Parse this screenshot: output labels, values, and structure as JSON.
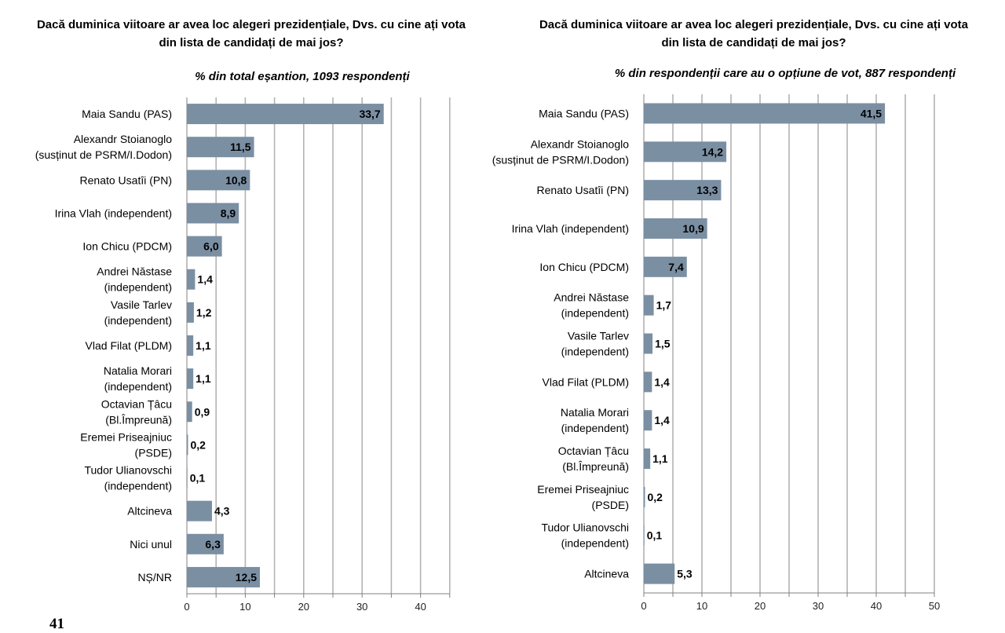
{
  "page_number": "41",
  "colors": {
    "bar": "#7b8fa3",
    "grid": "#b3b3b3",
    "axis": "#808080"
  },
  "chart_data": [
    {
      "type": "bar",
      "orientation": "horizontal",
      "title": "Dacă duminica viitoare ar avea loc alegeri prezidențiale, Dvs. cu cine ați vota din lista de candidați de mai jos?",
      "subtitle": "% din total eșantion, 1093 respondenți",
      "categories": [
        "Maia Sandu (PAS)",
        "Alexandr Stoianoglo\n(susținut de PSRM/I.Dodon)",
        "Renato Usatîi (PN)",
        "Irina Vlah (independent)",
        "Ion Chicu (PDCM)",
        "Andrei Năstase\n(independent)",
        "Vasile Tarlev\n(independent)",
        "Vlad Filat (PLDM)",
        "Natalia Morari\n(independent)",
        "Octavian Țâcu\n(Bl.Împreună)",
        "Eremei Priseajniuc\n(PSDE)",
        "Tudor Ulianovschi\n(independent)",
        "Altcineva",
        "Nici unul",
        "NȘ/NR"
      ],
      "values": [
        33.7,
        11.5,
        10.8,
        8.9,
        6.0,
        1.4,
        1.2,
        1.1,
        1.1,
        0.9,
        0.2,
        0.1,
        4.3,
        6.3,
        12.5
      ],
      "value_labels": [
        "33,7",
        "11,5",
        "10,8",
        "8,9",
        "6,0",
        "1,4",
        "1,2",
        "1,1",
        "1,1",
        "0,9",
        "0,2",
        "0,1",
        "4,3",
        "6,3",
        "12,5"
      ],
      "xlim": [
        0,
        45
      ],
      "xticks": [
        0,
        10,
        20,
        30,
        40
      ],
      "grid": true
    },
    {
      "type": "bar",
      "orientation": "horizontal",
      "title": "Dacă duminica viitoare ar avea loc alegeri prezidențiale, Dvs. cu cine ați vota din lista de candidați de mai jos?",
      "subtitle": "% din respondenții care au o opțiune de vot, 887 respondenți",
      "categories": [
        "Maia Sandu (PAS)",
        "Alexandr Stoianoglo\n(susținut de PSRM/I.Dodon)",
        "Renato Usatîi (PN)",
        "Irina Vlah (independent)",
        "Ion Chicu (PDCM)",
        "Andrei Năstase\n(independent)",
        "Vasile Tarlev\n(independent)",
        "Vlad Filat (PLDM)",
        "Natalia Morari\n(independent)",
        "Octavian Țâcu\n(Bl.Împreună)",
        "Eremei Priseajniuc\n(PSDE)",
        "Tudor Ulianovschi\n(independent)",
        "Altcineva"
      ],
      "values": [
        41.5,
        14.2,
        13.3,
        10.9,
        7.4,
        1.7,
        1.5,
        1.4,
        1.4,
        1.1,
        0.2,
        0.1,
        5.3
      ],
      "value_labels": [
        "41,5",
        "14,2",
        "13,3",
        "10,9",
        "7,4",
        "1,7",
        "1,5",
        "1,4",
        "1,4",
        "1,1",
        "0,2",
        "0,1",
        "5,3"
      ],
      "xlim": [
        0,
        50
      ],
      "xticks": [
        0,
        10,
        20,
        30,
        40,
        50
      ],
      "grid": true
    }
  ]
}
